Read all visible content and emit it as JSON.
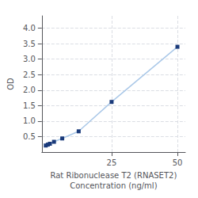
{
  "chart_data": {
    "type": "line",
    "xlabel": "Rat Ribonuclease T2 (RNASET2)\nConcentration (ng/ml)",
    "ylabel": "OD",
    "x": [
      0,
      0.78,
      1.563,
      3.125,
      6.25,
      12.5,
      25,
      50
    ],
    "values": [
      0.212,
      0.241,
      0.268,
      0.332,
      0.44,
      0.67,
      1.62,
      3.4
    ],
    "color": "#aac8e8",
    "colors": [
      "#1a3a7a",
      "#1a3a7a",
      "#1a3a7a",
      "#1a3a7a",
      "#1a3a7a",
      "#1a3a7a",
      "#1a3a7a",
      "#1a3a7a"
    ],
    "marker": "square",
    "xlim": [
      -1.5,
      53
    ],
    "xticks": [
      25,
      50
    ],
    "ylim": [
      0,
      4.4
    ],
    "yticks": [
      {
        "value": 0.5,
        "label": "0.5"
      },
      {
        "value": 1.0,
        "label": "1.0"
      },
      {
        "value": 1.5,
        "label": "1.5"
      },
      {
        "value": 2.0,
        "label": "2.0"
      },
      {
        "value": 2.5,
        "label": "2.5"
      },
      {
        "value": 3.0,
        "label": "3.0"
      },
      {
        "value": 3.5,
        "label": "3.5"
      },
      {
        "value": 4.0,
        "label": "4.0"
      }
    ],
    "grid": true
  }
}
